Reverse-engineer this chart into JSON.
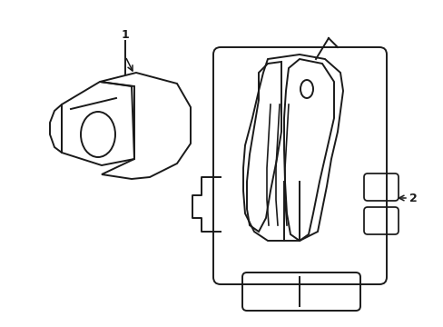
{
  "background_color": "#ffffff",
  "line_color": "#1a1a1a",
  "line_width": 1.4,
  "label_color": "#000000",
  "fig_width": 4.89,
  "fig_height": 3.6,
  "dpi": 100
}
